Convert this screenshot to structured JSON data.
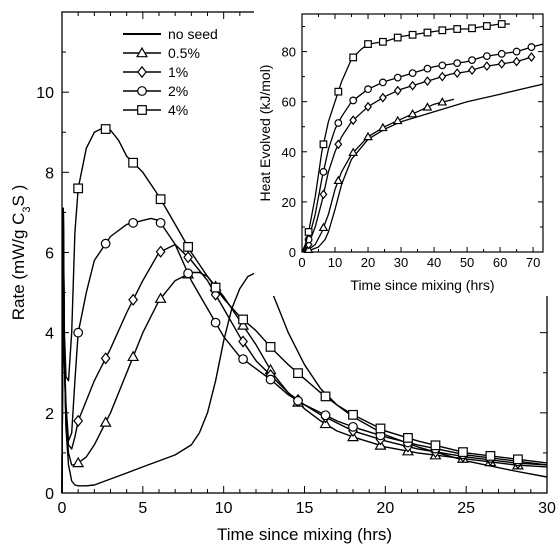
{
  "chart_data": [
    {
      "id": "main",
      "type": "line",
      "title": "",
      "xlabel": "Time since mixing (hrs)",
      "ylabel": "Rate (mW/g C",
      "ylabel_sub": "3",
      "ylabel_tail": "S )",
      "xlim": [
        0,
        30
      ],
      "ylim": [
        0,
        12
      ],
      "xticks": [
        0,
        5,
        10,
        15,
        20,
        25,
        30
      ],
      "yticks": [
        0,
        2,
        4,
        6,
        8,
        10
      ],
      "grid": false,
      "legend_position": "top-left",
      "series": [
        {
          "name": "no seed",
          "marker": "none",
          "x": [
            0.0,
            0.08,
            0.15,
            0.25,
            0.4,
            0.6,
            0.8,
            1.0,
            1.5,
            2.0,
            3.0,
            4.0,
            5.0,
            6.0,
            7.0,
            8.0,
            8.5,
            9.0,
            9.5,
            10.0,
            10.5,
            11.0,
            11.5,
            12.0,
            12.5,
            13.0,
            13.5,
            14.0,
            15.0,
            16.0,
            17.0,
            18.0,
            20.0,
            22.0,
            25.0,
            28.0,
            30.0
          ],
          "y": [
            0,
            7.1,
            3.3,
            1.6,
            0.7,
            0.3,
            0.2,
            0.18,
            0.18,
            0.2,
            0.35,
            0.5,
            0.65,
            0.8,
            0.95,
            1.2,
            1.5,
            2.0,
            2.8,
            3.8,
            4.6,
            5.1,
            5.4,
            5.5,
            5.35,
            5.0,
            4.5,
            4.0,
            3.2,
            2.6,
            2.2,
            1.9,
            1.45,
            1.15,
            0.8,
            0.55,
            0.4
          ]
        },
        {
          "name": "0.5%",
          "marker": "triangle",
          "x": [
            0.0,
            0.08,
            0.15,
            0.25,
            0.4,
            0.6,
            0.8,
            1.0,
            1.5,
            2.0,
            3.0,
            4.0,
            5.0,
            6.0,
            7.0,
            8.0,
            8.5,
            9.0,
            10.0,
            11.0,
            12.0,
            13.0,
            14.0,
            15.0,
            16.0,
            17.0,
            18.0,
            20.0,
            22.0,
            25.0,
            28.0,
            30.0
          ],
          "y": [
            0,
            7.1,
            3.3,
            1.7,
            1.0,
            0.7,
            0.7,
            0.75,
            0.9,
            1.2,
            2.0,
            3.0,
            4.0,
            4.8,
            5.3,
            5.5,
            5.5,
            5.4,
            4.9,
            4.3,
            3.7,
            3.0,
            2.5,
            2.1,
            1.8,
            1.55,
            1.4,
            1.15,
            1.0,
            0.85,
            0.7,
            0.65
          ]
        },
        {
          "name": "1%",
          "marker": "diamond",
          "x": [
            0.0,
            0.08,
            0.15,
            0.25,
            0.4,
            0.6,
            0.8,
            1.0,
            2.0,
            3.0,
            4.0,
            5.0,
            6.0,
            7.0,
            8.0,
            9.0,
            10.0,
            11.0,
            12.0,
            13.0,
            14.0,
            15.0,
            16.0,
            17.0,
            18.0,
            20.0,
            22.0,
            25.0,
            28.0,
            30.0
          ],
          "y": [
            0,
            7.1,
            3.3,
            1.8,
            1.2,
            1.1,
            1.4,
            1.8,
            2.8,
            3.6,
            4.5,
            5.3,
            6.0,
            6.2,
            5.8,
            5.3,
            4.6,
            3.9,
            3.3,
            2.9,
            2.5,
            2.2,
            1.95,
            1.75,
            1.55,
            1.3,
            1.1,
            0.9,
            0.75,
            0.7
          ]
        },
        {
          "name": "2%",
          "marker": "circle",
          "x": [
            0.0,
            0.08,
            0.15,
            0.25,
            0.4,
            0.6,
            0.8,
            1.0,
            1.5,
            2.0,
            2.5,
            3.0,
            4.0,
            5.0,
            5.5,
            6.0,
            7.0,
            8.0,
            9.0,
            10.0,
            11.0,
            12.0,
            13.0,
            14.0,
            15.0,
            16.0,
            17.0,
            18.0,
            20.0,
            22.0,
            25.0,
            28.0,
            30.0
          ],
          "y": [
            0,
            7.1,
            3.5,
            2.2,
            1.3,
            1.5,
            2.8,
            4.0,
            5.0,
            5.8,
            6.1,
            6.4,
            6.7,
            6.8,
            6.85,
            6.8,
            6.2,
            5.3,
            4.6,
            3.9,
            3.4,
            3.1,
            2.8,
            2.45,
            2.2,
            2.0,
            1.8,
            1.65,
            1.4,
            1.2,
            0.95,
            0.8,
            0.7
          ]
        },
        {
          "name": "4%",
          "marker": "square",
          "x": [
            0.0,
            0.08,
            0.15,
            0.25,
            0.4,
            0.6,
            0.8,
            1.0,
            1.5,
            2.0,
            2.5,
            3.0,
            3.5,
            4.0,
            5.0,
            6.0,
            7.0,
            8.0,
            9.0,
            10.0,
            11.0,
            12.0,
            13.0,
            14.0,
            15.0,
            16.0,
            17.0,
            18.0,
            20.0,
            22.0,
            25.0,
            28.0,
            30.0
          ],
          "y": [
            0,
            7.1,
            4.0,
            2.9,
            2.8,
            4.0,
            6.5,
            7.6,
            8.6,
            9.0,
            9.1,
            9.05,
            8.8,
            8.4,
            8.0,
            7.4,
            6.7,
            6.0,
            5.4,
            4.85,
            4.4,
            4.05,
            3.6,
            3.2,
            2.85,
            2.5,
            2.2,
            1.95,
            1.55,
            1.3,
            1.0,
            0.85,
            0.75
          ]
        }
      ]
    },
    {
      "id": "inset",
      "type": "line",
      "title": "",
      "xlabel": "Time since mixing (hrs)",
      "ylabel": "Heat Evolved (kJ/mol)",
      "xlim": [
        0,
        73
      ],
      "ylim": [
        0,
        95
      ],
      "xticks": [
        0,
        10,
        20,
        30,
        40,
        50,
        60,
        70
      ],
      "yticks": [
        0,
        20,
        40,
        60,
        80
      ],
      "grid": false,
      "series": [
        {
          "name": "no seed",
          "marker": "none",
          "x": [
            0,
            3,
            5,
            7,
            8,
            10,
            12,
            15,
            20,
            25,
            30,
            40,
            50,
            60,
            73
          ],
          "y": [
            0,
            1,
            2,
            5,
            8,
            17,
            27,
            37,
            45,
            49,
            52,
            56,
            60,
            63,
            67
          ]
        },
        {
          "name": "0.5%",
          "marker": "triangle",
          "x": [
            0,
            2,
            4,
            6,
            8,
            10,
            12,
            15,
            20,
            25,
            30,
            35,
            40,
            46
          ],
          "y": [
            0,
            1,
            3,
            8,
            15,
            25,
            32,
            39,
            46,
            50,
            53,
            56,
            59,
            61
          ]
        },
        {
          "name": "1%",
          "marker": "diamond",
          "x": [
            0,
            1,
            2,
            4,
            6,
            8,
            10,
            12,
            15,
            20,
            25,
            30,
            35,
            40,
            45,
            50,
            55,
            60,
            65,
            70
          ],
          "y": [
            0,
            1,
            3,
            10,
            20,
            32,
            40,
            46,
            52,
            58,
            62,
            65,
            67,
            69,
            71,
            72,
            74,
            75,
            76,
            78
          ]
        },
        {
          "name": "2%",
          "marker": "circle",
          "x": [
            0,
            1,
            2,
            4,
            6,
            8,
            10,
            12,
            15,
            20,
            25,
            30,
            35,
            40,
            45,
            50,
            55,
            60,
            65,
            70,
            73
          ],
          "y": [
            0,
            2,
            5,
            15,
            29,
            41,
            49,
            54,
            60,
            65,
            68,
            70,
            72,
            74,
            75,
            76,
            78,
            79,
            80,
            82,
            83
          ]
        },
        {
          "name": "4%",
          "marker": "square",
          "x": [
            0,
            1,
            2,
            4,
            6,
            8,
            10,
            12,
            15,
            18,
            20,
            25,
            30,
            35,
            40,
            45,
            50,
            55,
            60,
            63
          ],
          "y": [
            0,
            3,
            8,
            22,
            40,
            52,
            60,
            68,
            77,
            81,
            83,
            84,
            86,
            87,
            88,
            89,
            89,
            90,
            91,
            91
          ]
        }
      ]
    }
  ]
}
